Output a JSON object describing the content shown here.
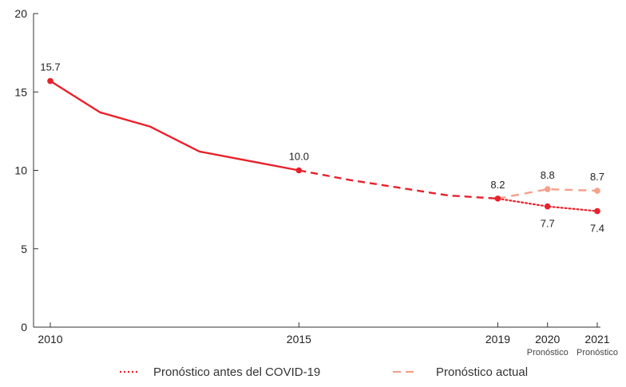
{
  "chart_data": {
    "type": "line",
    "title": "",
    "xlabel": "",
    "ylabel": "",
    "xlim": [
      2010,
      2021
    ],
    "ylim": [
      0,
      20
    ],
    "y_ticks": [
      0,
      5,
      10,
      15,
      20
    ],
    "x_ticks": [
      {
        "value": 2010,
        "label": "2010",
        "sub": ""
      },
      {
        "value": 2015,
        "label": "2015",
        "sub": ""
      },
      {
        "value": 2019,
        "label": "2019",
        "sub": ""
      },
      {
        "value": 2020,
        "label": "2020",
        "sub": "Pronóstico"
      },
      {
        "value": 2021,
        "label": "2021",
        "sub": "Pronóstico"
      }
    ],
    "grid": false,
    "legend_position": "bottom",
    "series": [
      {
        "name": "",
        "style": "solid",
        "color": "#e8212b",
        "x": [
          2010,
          2011,
          2012,
          2013,
          2014,
          2015
        ],
        "y": [
          15.7,
          13.7,
          12.8,
          11.2,
          10.6,
          10.0
        ]
      },
      {
        "name": "",
        "style": "dashed",
        "color": "#e8212b",
        "x": [
          2015,
          2016,
          2017,
          2018,
          2019
        ],
        "y": [
          10.0,
          9.4,
          8.9,
          8.4,
          8.2
        ]
      },
      {
        "name": "Pronóstico antes del COVID-19",
        "style": "dotted",
        "color": "#e8212b",
        "x": [
          2019,
          2020,
          2021
        ],
        "y": [
          8.2,
          7.7,
          7.4
        ]
      },
      {
        "name": "Pronóstico actual",
        "style": "long-dash",
        "color": "#f4a08a",
        "x": [
          2019,
          2020,
          2021
        ],
        "y": [
          8.2,
          8.8,
          8.7
        ]
      }
    ],
    "points": [
      {
        "x": 2010,
        "y": 15.7,
        "label": "15.7",
        "color": "#e8212b",
        "pos": "above"
      },
      {
        "x": 2015,
        "y": 10.0,
        "label": "10.0",
        "color": "#e8212b",
        "pos": "above"
      },
      {
        "x": 2019,
        "y": 8.2,
        "label": "8.2",
        "color": "#e8212b",
        "pos": "above"
      },
      {
        "x": 2020,
        "y": 8.8,
        "label": "8.8",
        "color": "#f4a08a",
        "pos": "above"
      },
      {
        "x": 2021,
        "y": 8.7,
        "label": "8.7",
        "color": "#f4a08a",
        "pos": "above"
      },
      {
        "x": 2020,
        "y": 7.7,
        "label": "7.7",
        "color": "#e8212b",
        "pos": "below"
      },
      {
        "x": 2021,
        "y": 7.4,
        "label": "7.4",
        "color": "#e8212b",
        "pos": "below"
      }
    ]
  }
}
